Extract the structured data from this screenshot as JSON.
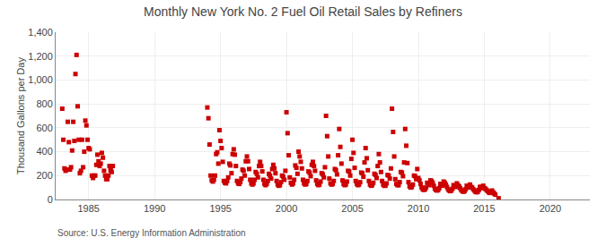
{
  "chart_data": {
    "type": "scatter",
    "title": "Monthly New York No. 2 Fuel Oil Retail Sales by Refiners",
    "ylabel": "Thousand Gallons per Day",
    "source": "Source: U.S. Energy Information Administration",
    "color": "#cc0000",
    "marker": "square",
    "grid": true,
    "xlim": [
      1982.5,
      2023.0
    ],
    "xticks": [
      1985,
      1990,
      1995,
      2000,
      2005,
      2010,
      2015,
      2020
    ],
    "ylim": [
      0,
      1400
    ],
    "yticks": [
      0,
      200,
      400,
      600,
      800,
      {
        "value": 1000,
        "label": "1,000"
      },
      {
        "value": 1200,
        "label": "1,200"
      },
      {
        "value": 1400,
        "label": "1,400"
      }
    ],
    "x": [
      1983.0,
      1983.083,
      1983.167,
      1983.25,
      1983.333,
      1983.417,
      1983.5,
      1983.583,
      1983.667,
      1984.0,
      1984.083,
      1984.25,
      1984.333,
      1984.583,
      1984.667,
      1984.75,
      1984.833,
      1985.0,
      1985.083,
      1985.417,
      1985.583,
      1985.667,
      1986.0,
      1986.417,
      1986.667,
      1983.75,
      1983.833,
      1983.917,
      1984.167,
      1984.417,
      1984.5,
      1984.917,
      1985.25,
      1985.333,
      1985.5,
      1985.75,
      1985.833,
      1985.917,
      1986.083,
      1986.167,
      1986.25,
      1986.333,
      1986.5,
      1986.583,
      1986.667,
      1986.75,
      1986.833,
      1994.0,
      1994.083,
      1994.167,
      1994.25,
      1994.333,
      1994.417,
      1994.5,
      1994.583,
      1994.667,
      1994.75,
      1994.833,
      1994.917,
      1995.0,
      1995.083,
      1995.167,
      1995.25,
      1995.333,
      1995.417,
      1995.5,
      1995.583,
      1995.667,
      1995.75,
      1995.833,
      1995.917,
      1996.0,
      1996.083,
      1996.167,
      1996.25,
      1996.333,
      1996.417,
      1996.5,
      1996.583,
      1996.667,
      1996.75,
      1996.833,
      1996.917,
      1997.0,
      1997.083,
      1997.167,
      1997.25,
      1997.333,
      1997.417,
      1997.5,
      1997.583,
      1997.667,
      1997.75,
      1997.833,
      1997.917,
      1998.0,
      1998.083,
      1998.167,
      1998.25,
      1998.333,
      1998.417,
      1998.5,
      1998.583,
      1998.667,
      1998.75,
      1998.833,
      1998.917,
      1999.0,
      1999.083,
      1999.167,
      1999.25,
      1999.333,
      1999.417,
      1999.5,
      1999.583,
      1999.667,
      1999.75,
      1999.833,
      1999.917,
      2000.0,
      2000.083,
      2000.167,
      2000.25,
      2000.333,
      2000.417,
      2000.5,
      2000.583,
      2000.667,
      2000.75,
      2000.833,
      2000.917,
      2001.0,
      2001.083,
      2001.167,
      2001.25,
      2001.333,
      2001.417,
      2001.5,
      2001.583,
      2001.667,
      2001.75,
      2001.833,
      2001.917,
      2002.0,
      2002.083,
      2002.167,
      2002.25,
      2002.333,
      2002.417,
      2002.5,
      2002.583,
      2002.667,
      2002.75,
      2002.833,
      2002.917,
      2003.0,
      2003.083,
      2003.167,
      2003.25,
      2003.333,
      2003.417,
      2003.5,
      2003.583,
      2003.667,
      2003.75,
      2003.833,
      2003.917,
      2004.0,
      2004.083,
      2004.167,
      2004.25,
      2004.333,
      2004.417,
      2004.5,
      2004.583,
      2004.667,
      2004.75,
      2004.833,
      2004.917,
      2005.0,
      2005.083,
      2005.167,
      2005.25,
      2005.333,
      2005.417,
      2005.5,
      2005.583,
      2005.667,
      2005.75,
      2005.833,
      2005.917,
      2006.0,
      2006.083,
      2006.167,
      2006.25,
      2006.333,
      2006.417,
      2006.5,
      2006.583,
      2006.667,
      2006.75,
      2006.833,
      2006.917,
      2007.0,
      2007.083,
      2007.167,
      2007.25,
      2007.333,
      2007.417,
      2007.5,
      2007.583,
      2007.667,
      2007.75,
      2007.833,
      2007.917,
      2008.0,
      2008.083,
      2008.167,
      2008.25,
      2008.333,
      2008.417,
      2008.5,
      2008.583,
      2008.667,
      2008.75,
      2008.833,
      2008.917,
      2009.0,
      2009.083,
      2009.167,
      2009.25,
      2009.333,
      2009.417,
      2009.5,
      2009.583,
      2009.667,
      2009.75,
      2009.833,
      2009.917,
      2010.0,
      2010.083,
      2010.167,
      2010.25,
      2010.333,
      2010.417,
      2010.5,
      2010.583,
      2010.667,
      2010.75,
      2010.833,
      2010.917,
      2011.0,
      2011.083,
      2011.167,
      2011.25,
      2011.333,
      2011.417,
      2011.5,
      2011.583,
      2011.667,
      2011.75,
      2011.833,
      2011.917,
      2012.0,
      2012.083,
      2012.167,
      2012.25,
      2012.333,
      2012.417,
      2012.5,
      2012.583,
      2012.667,
      2012.75,
      2012.833,
      2012.917,
      2013.0,
      2013.083,
      2013.167,
      2013.25,
      2013.333,
      2013.417,
      2013.5,
      2013.583,
      2013.667,
      2013.75,
      2013.833,
      2013.917,
      2014.0,
      2014.083,
      2014.167,
      2014.25,
      2014.333,
      2014.417,
      2014.5,
      2014.583,
      2014.667,
      2014.75,
      2014.833,
      2014.917,
      2015.0,
      2015.083,
      2015.167,
      2015.25,
      2015.333,
      2015.417,
      2015.5,
      2015.583,
      2015.667,
      2015.75,
      2015.833,
      2016.083
    ],
    "values": [
      760,
      500,
      260,
      240,
      250,
      650,
      480,
      250,
      270,
      1050,
      1210,
      500,
      220,
      270,
      400,
      660,
      620,
      430,
      420,
      200,
      290,
      375,
      390,
      170,
      240,
      410,
      650,
      490,
      780,
      240,
      500,
      500,
      200,
      180,
      200,
      320,
      280,
      300,
      350,
      240,
      200,
      170,
      200,
      280,
      260,
      230,
      280,
      770,
      680,
      460,
      200,
      160,
      150,
      165,
      200,
      380,
      395,
      300,
      580,
      490,
      430,
      315,
      155,
      140,
      135,
      155,
      185,
      300,
      285,
      220,
      380,
      420,
      375,
      280,
      155,
      135,
      130,
      145,
      175,
      250,
      240,
      200,
      320,
      360,
      320,
      255,
      165,
      135,
      125,
      135,
      165,
      230,
      215,
      185,
      280,
      315,
      280,
      235,
      165,
      130,
      120,
      130,
      155,
      215,
      200,
      175,
      255,
      290,
      260,
      220,
      155,
      125,
      115,
      120,
      145,
      200,
      190,
      165,
      240,
      730,
      555,
      370,
      185,
      140,
      125,
      135,
      165,
      285,
      265,
      215,
      400,
      360,
      315,
      260,
      165,
      135,
      125,
      130,
      155,
      235,
      225,
      195,
      290,
      315,
      280,
      240,
      160,
      130,
      120,
      125,
      150,
      220,
      210,
      185,
      270,
      700,
      530,
      360,
      175,
      135,
      125,
      130,
      155,
      255,
      245,
      210,
      370,
      590,
      440,
      300,
      160,
      130,
      120,
      125,
      150,
      240,
      235,
      200,
      340,
      500,
      390,
      265,
      155,
      130,
      120,
      125,
      145,
      225,
      220,
      190,
      310,
      430,
      345,
      245,
      155,
      125,
      115,
      120,
      140,
      215,
      205,
      180,
      280,
      380,
      310,
      230,
      155,
      125,
      115,
      115,
      135,
      205,
      200,
      175,
      260,
      760,
      565,
      360,
      170,
      130,
      120,
      120,
      145,
      230,
      225,
      195,
      310,
      590,
      450,
      305,
      145,
      110,
      100,
      105,
      125,
      200,
      195,
      170,
      255,
      180,
      160,
      130,
      100,
      85,
      80,
      85,
      100,
      140,
      135,
      120,
      160,
      155,
      140,
      115,
      90,
      80,
      75,
      80,
      95,
      130,
      125,
      115,
      150,
      140,
      125,
      105,
      85,
      75,
      70,
      75,
      90,
      120,
      115,
      105,
      135,
      120,
      110,
      95,
      80,
      70,
      65,
      70,
      85,
      115,
      110,
      100,
      125,
      105,
      100,
      85,
      75,
      65,
      60,
      65,
      80,
      105,
      105,
      95,
      115,
      95,
      90,
      80,
      70,
      60,
      55,
      60,
      75,
      60,
      50,
      40,
      10
    ]
  }
}
